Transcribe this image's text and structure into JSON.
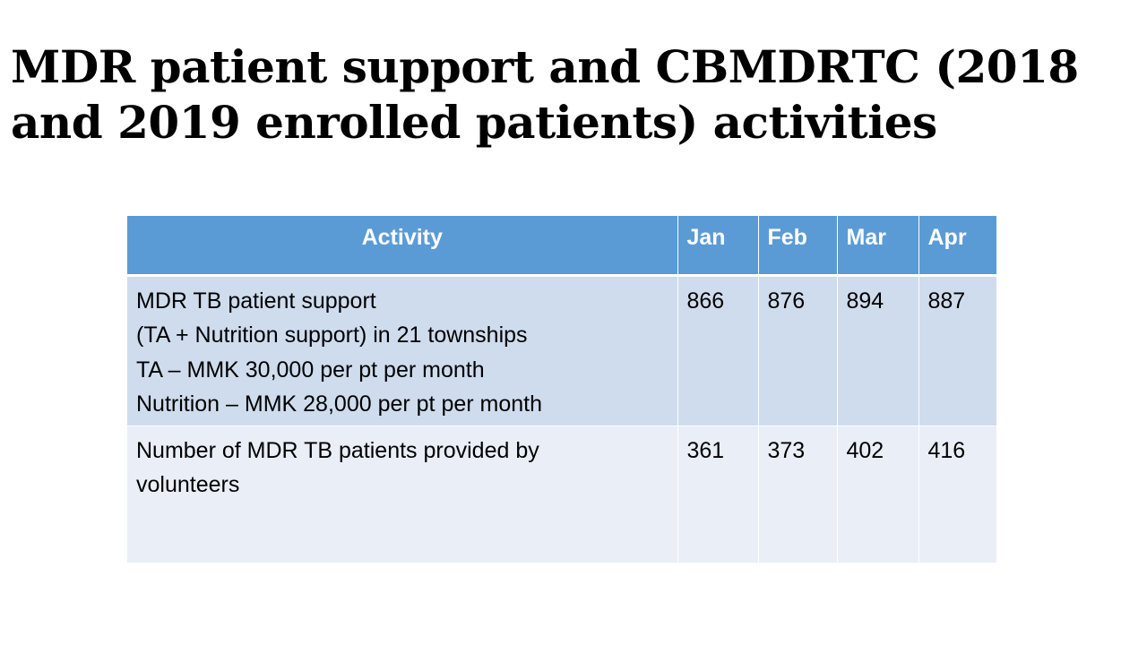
{
  "slide": {
    "title": "MDR patient support and CBMDRTC (2018 and 2019 enrolled patients) activities"
  },
  "table": {
    "headers": [
      "Activity",
      "Jan",
      "Feb",
      "Mar",
      "Apr"
    ],
    "rows": [
      {
        "activity_lines": [
          "MDR TB patient support",
          "(TA + Nutrition support)  in 21 townships",
          "TA – MMK 30,000 per pt per month",
          "Nutrition – MMK 28,000 per pt per month"
        ],
        "values": [
          "866",
          "876",
          "894",
          "887"
        ]
      },
      {
        "activity_lines": [
          "Number of MDR TB patients provided by",
          "volunteers"
        ],
        "values": [
          "361",
          "373",
          "402",
          "416"
        ]
      }
    ]
  },
  "colors": {
    "header_bg": "#5b9bd5",
    "row_dark_bg": "#cfdcee",
    "row_light_bg": "#e9eef7"
  }
}
